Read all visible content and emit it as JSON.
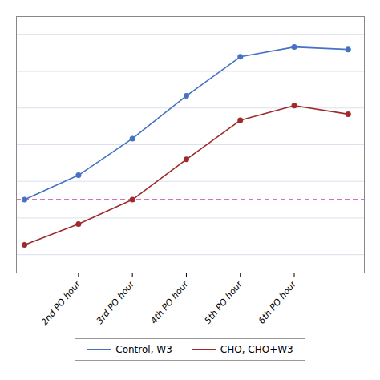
{
  "chart_data": {
    "type": "line",
    "x": [
      0,
      1,
      2,
      3,
      4,
      5,
      6
    ],
    "series": [
      {
        "name": "Control, W3",
        "color": "#4472c4",
        "marker": "o",
        "values": [
          145,
          165,
          195,
          230,
          262,
          270,
          268
        ]
      },
      {
        "name": "CHO, CHO+W3",
        "color": "#9e2a2b",
        "marker": "o",
        "values": [
          108,
          125,
          145,
          178,
          210,
          222,
          215
        ]
      }
    ],
    "hlines": [
      {
        "y": 145,
        "color": "#cc44aa",
        "line_style": "dashed"
      }
    ],
    "xlim": [
      -0.15,
      6.3
    ],
    "xticks": [
      {
        "value": 1,
        "label": "2nd PO hour"
      },
      {
        "value": 2,
        "label": "3rd PO hour"
      },
      {
        "value": 3,
        "label": "4th PO hour"
      },
      {
        "value": 4,
        "label": "5th PO hour"
      },
      {
        "value": 5,
        "label": "6th PO hour"
      }
    ],
    "ylim": [
      85,
      295
    ],
    "yticks": [
      100,
      130,
      160,
      190,
      220,
      250,
      280
    ],
    "grid": true,
    "tick_labels": "x",
    "legend": "bottom"
  }
}
